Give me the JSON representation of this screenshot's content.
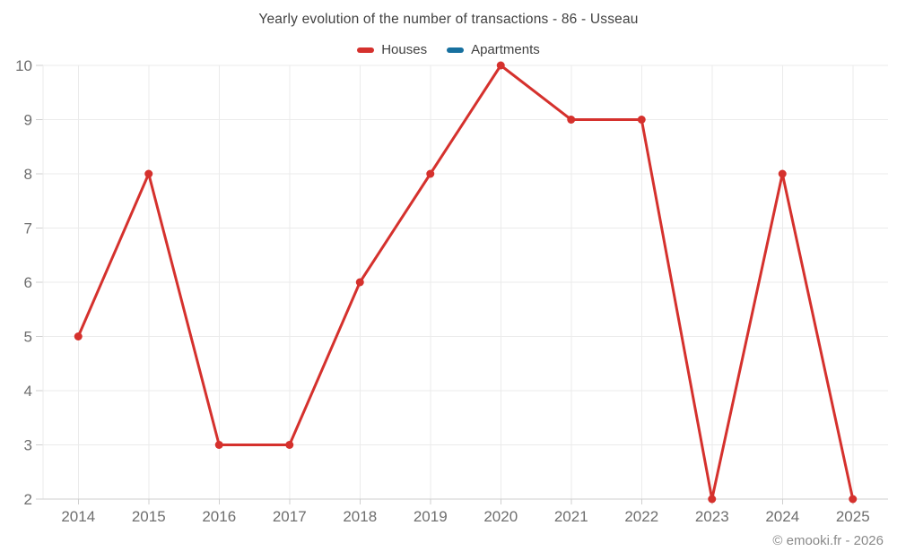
{
  "title": "Yearly evolution of the number of transactions - 86 - Usseau",
  "legend": {
    "items": [
      {
        "label": "Houses",
        "color": "#d5312d"
      },
      {
        "label": "Apartments",
        "color": "#17709f"
      }
    ]
  },
  "watermark": "© emooki.fr - 2026",
  "colors": {
    "grid": "#ebebeb",
    "axis": "#cfcfcf",
    "axis_label": "#6e6e6e"
  },
  "chart_data": {
    "type": "line",
    "title": "Yearly evolution of the number of transactions - 86 - Usseau",
    "x": [
      2014,
      2015,
      2016,
      2017,
      2018,
      2019,
      2020,
      2021,
      2022,
      2023,
      2024,
      2025
    ],
    "series": [
      {
        "name": "Houses",
        "color": "#d5312d",
        "values": [
          5,
          8,
          3,
          3,
          6,
          8,
          10,
          9,
          9,
          2,
          8,
          2
        ]
      },
      {
        "name": "Apartments",
        "color": "#17709f",
        "values": []
      }
    ],
    "xlabel": "",
    "ylabel": "",
    "ylim": [
      2,
      10
    ],
    "ytick_step": 1,
    "grid": true,
    "legend_position": "top",
    "marker_radius": 4.5,
    "line_width": 3
  }
}
